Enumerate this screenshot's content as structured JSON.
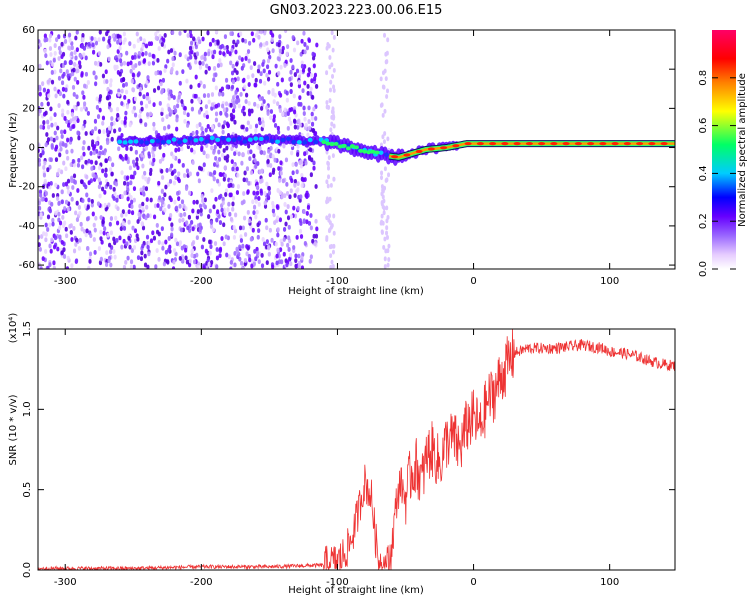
{
  "title": "GN03.2023.223.00.06.E15",
  "chart_data": [
    {
      "type": "heatmap",
      "xlabel": "Height of straight line (km)",
      "ylabel": "Frequency (Hz)",
      "xlim": [
        -320,
        148
      ],
      "ylim": [
        -62,
        60
      ],
      "xticks": [
        -300,
        -200,
        -100,
        0,
        100
      ],
      "yticks": [
        60,
        40,
        20,
        0,
        -20,
        -40,
        -60
      ],
      "colorbar": {
        "label": "Normalized spectral amplitude",
        "range": [
          0,
          1
        ],
        "ticks": [
          "0.0",
          "0.2",
          "0.4",
          "0.6",
          "0.8"
        ],
        "colors": [
          "#ffffff",
          "#e6ccff",
          "#9966ff",
          "#6600ff",
          "#0000ff",
          "#00ccff",
          "#00ff66",
          "#ffff00",
          "#ff8000",
          "#ff0000",
          "#ff0066"
        ]
      },
      "signal_track": {
        "x": [
          -260,
          -200,
          -150,
          -110,
          -95,
          -80,
          -65,
          -55,
          -45,
          -35,
          -20,
          -5,
          20,
          60,
          100,
          148
        ],
        "freq": [
          3,
          4,
          4,
          3,
          1,
          -2,
          -4,
          -5,
          -3,
          -1,
          0,
          2,
          2,
          2,
          2,
          2
        ]
      }
    },
    {
      "type": "line",
      "xlabel": "Height of straight line (km)",
      "ylabel": "SNR (10 * v/v)",
      "y_multiplier": "(x10⁴)",
      "xlim": [
        -320,
        148
      ],
      "ylim": [
        0,
        1.5
      ],
      "xticks": [
        -300,
        -200,
        -100,
        0,
        100
      ],
      "yticks": [
        "0.0",
        "0.5",
        "1.0",
        "1.5"
      ],
      "color": "#ee3333",
      "series": [
        {
          "x": [
            -320,
            -250,
            -200,
            -150,
            -110,
            -100,
            -95,
            -90,
            -85,
            -80,
            -75,
            -72,
            -70,
            -68,
            -66,
            -62,
            -60,
            -57,
            -54,
            -50,
            -46,
            -42,
            -38,
            -34,
            -30,
            -25,
            -20,
            -15,
            -10,
            -5,
            0,
            5,
            10,
            15,
            20,
            25,
            30,
            40,
            60,
            80,
            95,
            100,
            110,
            120,
            130,
            140,
            148
          ],
          "values": [
            0.01,
            0.01,
            0.02,
            0.02,
            0.03,
            0.05,
            0.1,
            0.18,
            0.35,
            0.55,
            0.45,
            0.2,
            0.08,
            0.03,
            0.02,
            0.05,
            0.15,
            0.4,
            0.55,
            0.45,
            0.6,
            0.65,
            0.55,
            0.72,
            0.75,
            0.65,
            0.8,
            0.82,
            0.75,
            0.9,
            0.95,
            0.88,
            1.05,
            1.1,
            1.2,
            1.28,
            1.35,
            1.38,
            1.38,
            1.4,
            1.38,
            1.36,
            1.35,
            1.33,
            1.3,
            1.28,
            1.27
          ]
        }
      ]
    }
  ]
}
